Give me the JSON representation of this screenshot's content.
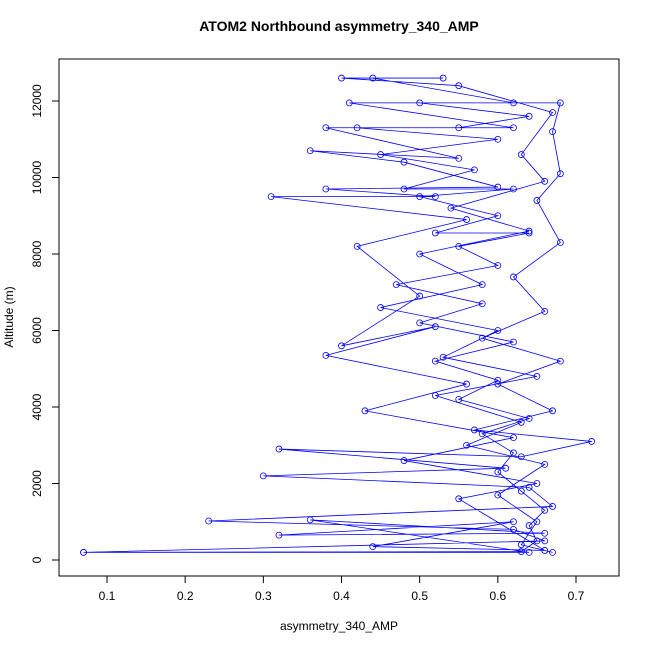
{
  "chart_data": {
    "type": "line",
    "title": "ATOM2 Northbound asymmetry_340_AMP",
    "x_label": "asymmetry_340_AMP",
    "y_label": "Altitude (m)",
    "xlim": [
      0.0386,
      0.755
    ],
    "ylim": [
      -418,
      13098
    ],
    "xticks": [
      0.1,
      0.2,
      0.3,
      0.4,
      0.5,
      0.6,
      0.7
    ],
    "yticks": [
      0,
      2000,
      4000,
      6000,
      8000,
      10000,
      12000
    ],
    "markers": true,
    "series": [
      {
        "color": "#0000ff",
        "x": [
          0.07,
          0.63,
          0.65,
          0.64,
          0.66,
          0.63,
          0.6,
          0.62,
          0.58,
          0.64,
          0.55,
          0.6,
          0.52,
          0.62,
          0.5,
          0.58,
          0.47,
          0.6,
          0.55,
          0.64,
          0.52,
          0.6,
          0.5,
          0.62,
          0.48,
          0.57,
          0.45,
          0.6,
          0.42,
          0.55,
          0.64,
          0.5,
          0.68,
          0.67,
          0.68,
          0.65,
          0.68,
          0.62,
          0.66,
          0.58,
          0.68,
          0.6,
          0.67,
          0.57,
          0.72,
          0.63,
          0.32,
          0.61,
          0.3,
          0.64,
          0.67,
          0.23,
          0.62,
          0.66,
          0.07,
          0.64,
          0.36,
          0.66,
          0.32,
          0.62,
          0.44,
          0.66,
          0.55,
          0.65,
          0.48,
          0.62,
          0.43,
          0.56,
          0.38,
          0.52,
          0.4,
          0.5,
          0.42,
          0.56,
          0.31,
          0.52,
          0.38,
          0.6,
          0.48,
          0.36,
          0.55,
          0.38,
          0.62,
          0.41,
          0.62,
          0.44,
          0.53,
          0.4,
          0.55,
          0.67,
          0.63,
          0.66,
          0.54,
          0.64,
          0.5,
          0.58,
          0.45,
          0.6,
          0.53,
          0.65,
          0.52,
          0.63,
          0.56,
          0.66,
          0.6,
          0.65,
          0.63,
          0.67
        ],
        "y": [
          200,
          220,
          500,
          900,
          1300,
          1800,
          2300,
          2800,
          3300,
          3700,
          4200,
          4700,
          5200,
          5700,
          6200,
          6700,
          7200,
          7700,
          8200,
          8550,
          8550,
          9000,
          9500,
          9700,
          9700,
          10200,
          10600,
          11000,
          11300,
          11300,
          11600,
          11950,
          11950,
          11200,
          10100,
          9400,
          8300,
          7400,
          6500,
          5800,
          5200,
          4600,
          3900,
          3400,
          3100,
          2700,
          2900,
          2400,
          2200,
          1900,
          1400,
          1020,
          800,
          500,
          200,
          200,
          1050,
          700,
          650,
          1000,
          350,
          250,
          1600,
          2000,
          2600,
          3200,
          3900,
          4600,
          5350,
          6100,
          5600,
          6900,
          8200,
          8900,
          9500,
          9500,
          9700,
          9750,
          10400,
          10700,
          10500,
          11300,
          11300,
          11950,
          11950,
          12600,
          12600,
          12600,
          12400,
          11700,
          10600,
          9900,
          9200,
          8600,
          8000,
          7200,
          6600,
          6000,
          5300,
          4800,
          4300,
          3600,
          3000,
          2500,
          1700,
          1000,
          400,
          200
        ]
      }
    ]
  }
}
